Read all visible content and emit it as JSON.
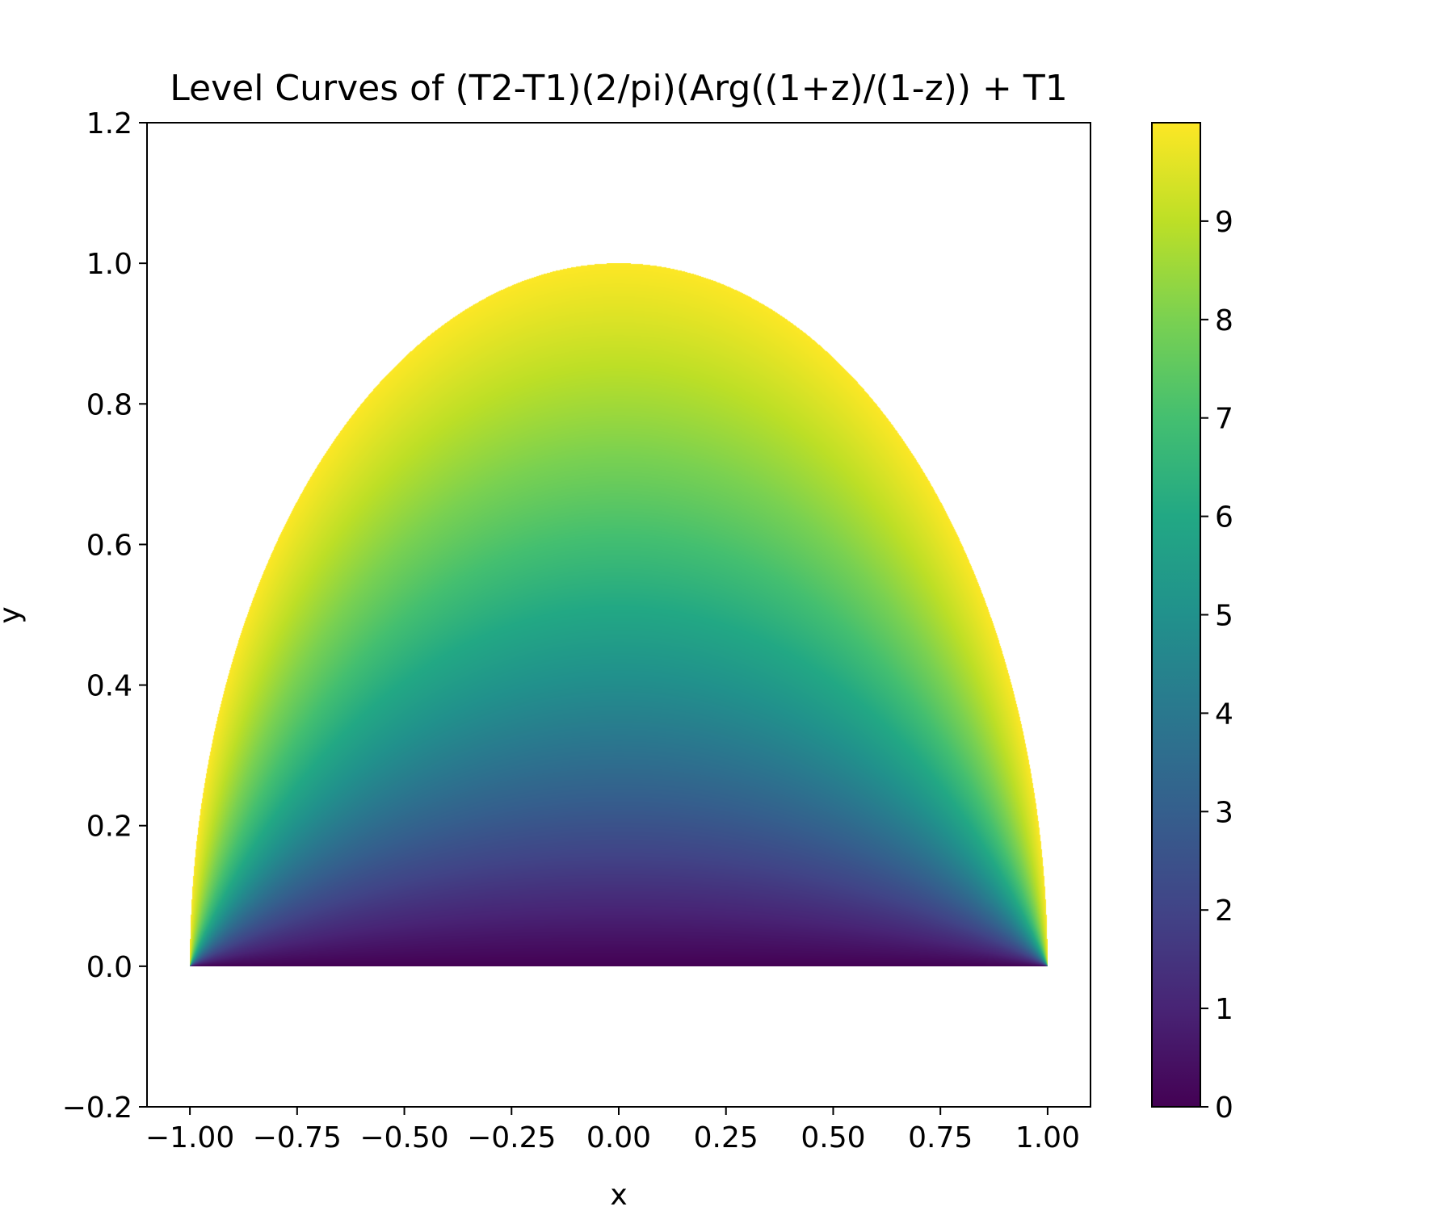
{
  "chart_data": {
    "type": "heatmap",
    "title": "Level Curves of (T2-T1)(2/pi)(Arg((1+z)/(1-z)) + T1",
    "xlabel": "x",
    "ylabel": "y",
    "xlim": [
      -1.1,
      1.1
    ],
    "ylim": [
      -0.2,
      1.2
    ],
    "x_ticks": [
      -1.0,
      -0.75,
      -0.5,
      -0.25,
      0.0,
      0.25,
      0.5,
      0.75,
      1.0
    ],
    "x_tick_labels": [
      "−1.00",
      "−0.75",
      "−0.50",
      "−0.25",
      "0.00",
      "0.25",
      "0.50",
      "0.75",
      "1.00"
    ],
    "y_ticks": [
      -0.2,
      0.0,
      0.2,
      0.4,
      0.6,
      0.8,
      1.0,
      1.2
    ],
    "y_tick_labels": [
      "−0.2",
      "0.0",
      "0.2",
      "0.4",
      "0.6",
      "0.8",
      "1.0",
      "1.2"
    ],
    "grid": false,
    "colormap": "viridis",
    "colorbar": {
      "range": [
        0,
        10
      ],
      "ticks": [
        0,
        1,
        2,
        3,
        4,
        5,
        6,
        7,
        8,
        9
      ],
      "tick_labels": [
        "0",
        "1",
        "2",
        "3",
        "4",
        "5",
        "6",
        "7",
        "8",
        "9"
      ]
    },
    "field": {
      "T1": 0,
      "T2": 10,
      "domain": "upper half unit disk",
      "x_range": [
        -1,
        1
      ],
      "y_range": [
        0,
        1
      ]
    }
  }
}
